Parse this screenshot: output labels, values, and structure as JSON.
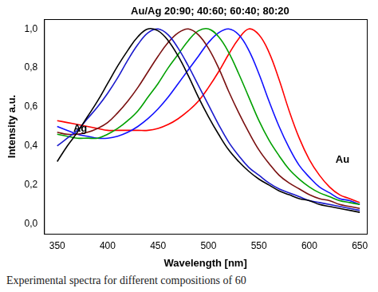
{
  "chart_data": {
    "type": "line",
    "x_label": "Wavelength [nm]",
    "y_label": "Intensity a.u.",
    "caption": "Experimental spectra for different compositions of 60",
    "grid": false,
    "line_style": "solid",
    "marker": "none",
    "xlim": [
      337,
      657
    ],
    "xticks": [
      350,
      400,
      450,
      500,
      550,
      600,
      650
    ],
    "ylim": [
      -0.05,
      1.05
    ],
    "yticks": [
      {
        "value": 0,
        "label": "0,0"
      },
      {
        "value": 0.2,
        "label": "0,2"
      },
      {
        "value": 0.4,
        "label": "0,4"
      },
      {
        "value": 0.6,
        "label": "0,6"
      },
      {
        "value": 0.8,
        "label": "0,8"
      },
      {
        "value": 1.0,
        "label": "1,0"
      }
    ],
    "annotations": [
      {
        "text": "Ag",
        "x": 366,
        "y": 0.49
      },
      {
        "text": "Au",
        "x": 626,
        "y": 0.33
      },
      {
        "text": "Au/Ag 20:90; 40:60; 60:40; 80:20",
        "x": 423,
        "y": 1.09
      }
    ],
    "x": [
      350,
      360,
      370,
      380,
      390,
      400,
      410,
      420,
      430,
      440,
      450,
      460,
      470,
      480,
      490,
      500,
      510,
      520,
      530,
      540,
      550,
      560,
      570,
      580,
      590,
      600,
      610,
      620,
      630,
      640,
      650
    ],
    "series": [
      {
        "name": "Ag",
        "color": "#000000",
        "values": [
          0.32,
          0.4,
          0.47,
          0.55,
          0.63,
          0.72,
          0.81,
          0.89,
          0.96,
          1.0,
          0.99,
          0.94,
          0.86,
          0.76,
          0.65,
          0.55,
          0.46,
          0.38,
          0.32,
          0.27,
          0.23,
          0.2,
          0.17,
          0.15,
          0.13,
          0.12,
          0.1,
          0.09,
          0.08,
          0.07,
          0.06
        ]
      },
      {
        "color": "#1a1acc",
        "values": [
          0.4,
          0.44,
          0.48,
          0.54,
          0.6,
          0.67,
          0.75,
          0.84,
          0.92,
          0.98,
          1.0,
          0.97,
          0.9,
          0.81,
          0.71,
          0.61,
          0.51,
          0.42,
          0.35,
          0.29,
          0.25,
          0.21,
          0.18,
          0.16,
          0.14,
          0.12,
          0.11,
          0.1,
          0.09,
          0.08,
          0.07
        ]
      },
      {
        "color": "#7a1010",
        "values": [
          0.47,
          0.46,
          0.46,
          0.47,
          0.49,
          0.52,
          0.57,
          0.63,
          0.7,
          0.78,
          0.86,
          0.93,
          0.98,
          1.0,
          0.97,
          0.9,
          0.8,
          0.68,
          0.57,
          0.47,
          0.38,
          0.31,
          0.25,
          0.21,
          0.18,
          0.15,
          0.13,
          0.12,
          0.1,
          0.09,
          0.08
        ]
      },
      {
        "color": "#00a000",
        "values": [
          0.46,
          0.45,
          0.44,
          0.44,
          0.44,
          0.46,
          0.49,
          0.53,
          0.58,
          0.65,
          0.72,
          0.8,
          0.87,
          0.94,
          0.99,
          1.0,
          0.96,
          0.88,
          0.77,
          0.65,
          0.53,
          0.43,
          0.35,
          0.28,
          0.23,
          0.19,
          0.16,
          0.14,
          0.12,
          0.11,
          0.1
        ]
      },
      {
        "color": "#1010ff",
        "values": [
          0.5,
          0.48,
          0.46,
          0.45,
          0.44,
          0.44,
          0.45,
          0.47,
          0.5,
          0.54,
          0.59,
          0.65,
          0.72,
          0.79,
          0.86,
          0.93,
          0.98,
          1.0,
          0.97,
          0.89,
          0.77,
          0.63,
          0.5,
          0.39,
          0.3,
          0.24,
          0.19,
          0.16,
          0.13,
          0.12,
          0.1
        ]
      },
      {
        "name": "Au",
        "color": "#ff0000",
        "values": [
          0.53,
          0.52,
          0.51,
          0.5,
          0.49,
          0.48,
          0.48,
          0.48,
          0.48,
          0.48,
          0.49,
          0.51,
          0.54,
          0.58,
          0.63,
          0.7,
          0.78,
          0.87,
          0.95,
          1.0,
          0.97,
          0.88,
          0.74,
          0.58,
          0.44,
          0.33,
          0.25,
          0.19,
          0.15,
          0.13,
          0.11
        ]
      }
    ]
  }
}
